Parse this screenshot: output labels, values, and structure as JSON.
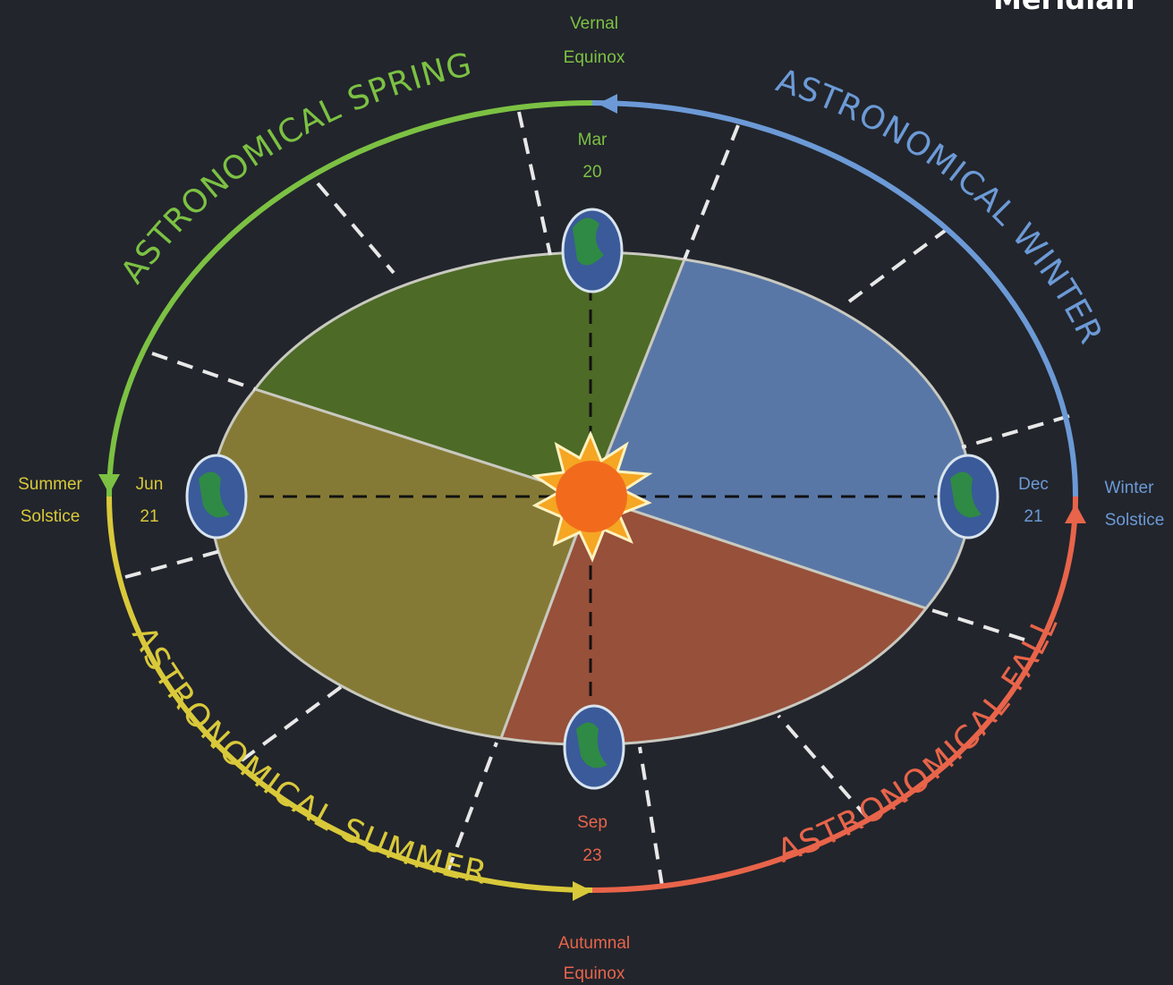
{
  "header": {
    "title": "Meridian"
  },
  "seasons": {
    "spring": "ASTRONOMICAL SPRING",
    "winter": "ASTRONOMICAL WINTER",
    "summer": "ASTRONOMICAL SUMMER",
    "fall": "ASTRONOMICAL FALL"
  },
  "events": {
    "vernal": {
      "name": [
        "Vernal",
        "Equinox"
      ],
      "date": [
        "Mar",
        "20"
      ]
    },
    "summer": {
      "name": [
        "Summer",
        "Solstice"
      ],
      "date": [
        "Jun",
        "21"
      ]
    },
    "winter": {
      "name": [
        "Winter",
        "Solstice"
      ],
      "date": [
        "Dec",
        "21"
      ]
    },
    "autumnal": {
      "name": [
        "Autumnal",
        "Equinox"
      ],
      "date": [
        "Sep",
        "23"
      ]
    }
  }
}
